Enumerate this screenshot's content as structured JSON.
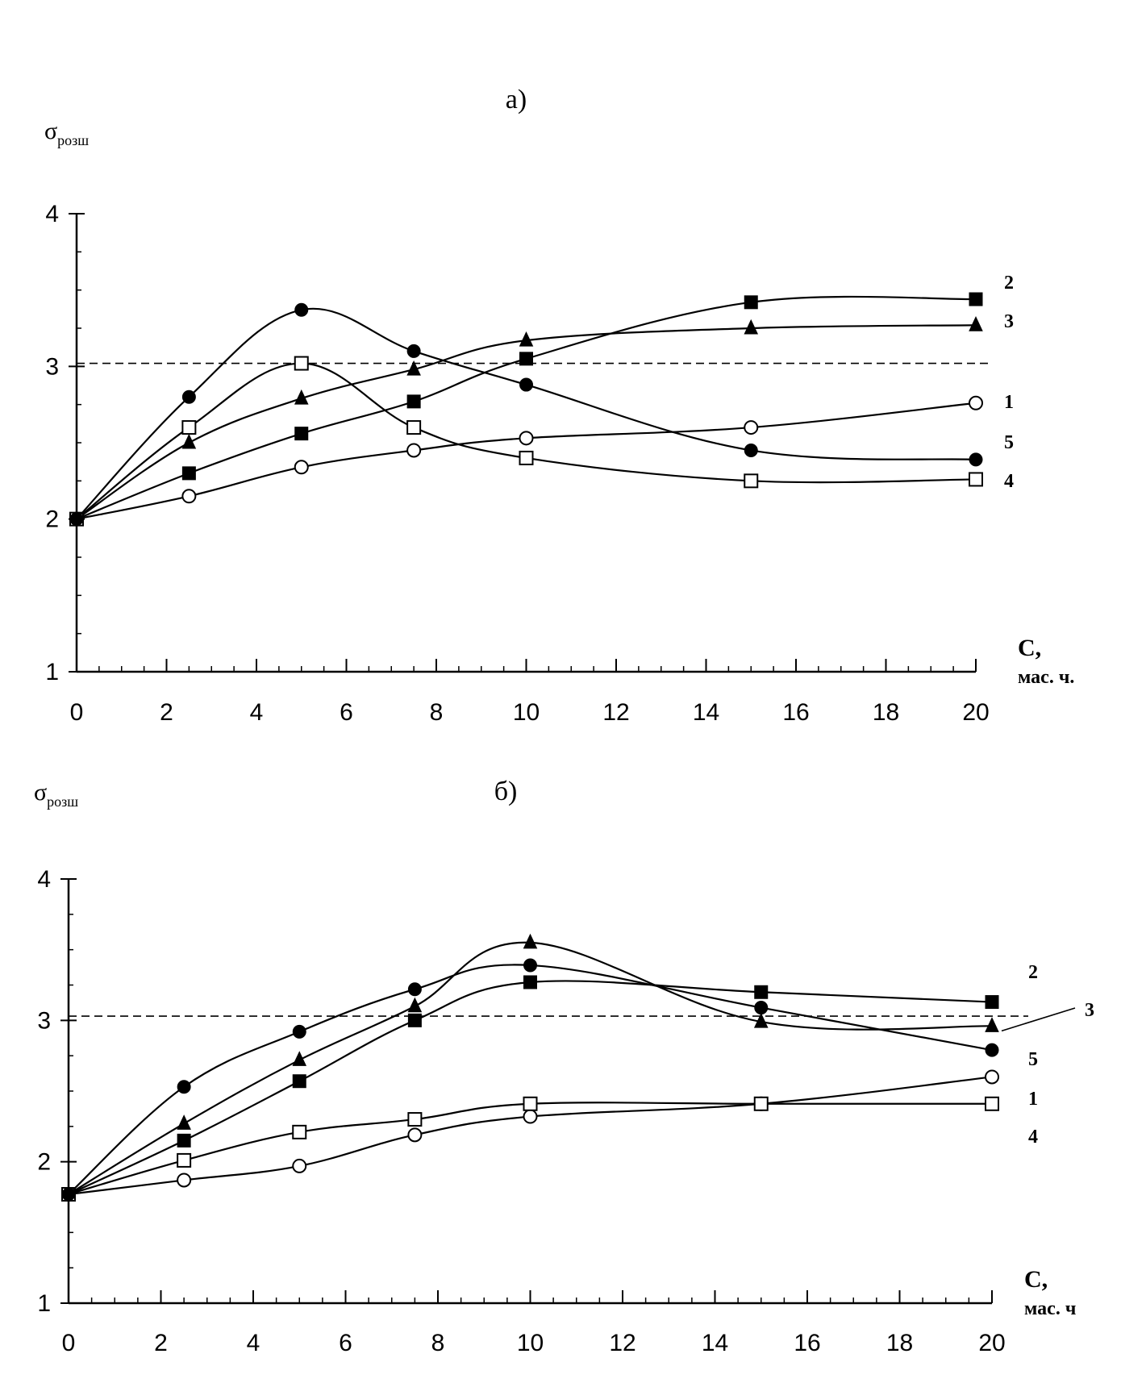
{
  "chart_data": [
    {
      "type": "line",
      "title": "а)",
      "ylabel_main": "σ",
      "ylabel_sub": "розш",
      "xlabel_line1": "С,",
      "xlabel_line2": "мас. ч.",
      "xlim": [
        0,
        20
      ],
      "ylim": [
        1,
        4
      ],
      "xticks": [
        0,
        2,
        4,
        6,
        8,
        10,
        12,
        14,
        16,
        18,
        20
      ],
      "yticks": [
        1,
        2,
        3,
        4
      ],
      "reference_line_y": 3.02,
      "series": [
        {
          "label": "1",
          "marker": "circle-open",
          "x": [
            0,
            2.5,
            5,
            7.5,
            10,
            15,
            20
          ],
          "y": [
            2.0,
            2.15,
            2.34,
            2.45,
            2.53,
            2.6,
            2.76
          ]
        },
        {
          "label": "2",
          "marker": "square-filled",
          "x": [
            0,
            2.5,
            5,
            7.5,
            10,
            15,
            20
          ],
          "y": [
            2.0,
            2.3,
            2.56,
            2.77,
            3.05,
            3.42,
            3.44
          ]
        },
        {
          "label": "3",
          "marker": "triangle-filled",
          "x": [
            0,
            2.5,
            5,
            7.5,
            10,
            15,
            20
          ],
          "y": [
            2.0,
            2.5,
            2.79,
            2.98,
            3.17,
            3.25,
            3.27
          ]
        },
        {
          "label": "4",
          "marker": "square-open",
          "x": [
            0,
            2.5,
            5,
            7.5,
            10,
            15,
            20
          ],
          "y": [
            2.0,
            2.6,
            3.02,
            2.6,
            2.4,
            2.25,
            2.26
          ]
        },
        {
          "label": "5",
          "marker": "circle-filled",
          "x": [
            0,
            2.5,
            5,
            7.5,
            10,
            15,
            20
          ],
          "y": [
            2.0,
            2.8,
            3.37,
            3.1,
            2.88,
            2.45,
            2.39
          ]
        }
      ]
    },
    {
      "type": "line",
      "title": "б)",
      "ylabel_main": "σ",
      "ylabel_sub": "розш",
      "xlabel_line1": "С,",
      "xlabel_line2": "мас. ч",
      "xlim": [
        0,
        20
      ],
      "ylim": [
        1,
        4
      ],
      "xticks": [
        0,
        2,
        4,
        6,
        8,
        10,
        12,
        14,
        16,
        18,
        20
      ],
      "yticks": [
        1,
        2,
        3,
        4
      ],
      "reference_line_y": 3.03,
      "series": [
        {
          "label": "1",
          "marker": "circle-open",
          "x": [
            0,
            2.5,
            5,
            7.5,
            10,
            15,
            20
          ],
          "y": [
            1.77,
            1.87,
            1.97,
            2.19,
            2.32,
            2.41,
            2.6
          ]
        },
        {
          "label": "2",
          "marker": "square-filled",
          "x": [
            0,
            2.5,
            5,
            7.5,
            10,
            15,
            20
          ],
          "y": [
            1.77,
            2.15,
            2.57,
            3.0,
            3.27,
            3.2,
            3.13
          ]
        },
        {
          "label": "3",
          "marker": "triangle-filled",
          "x": [
            0,
            2.5,
            5,
            7.5,
            10,
            15,
            20
          ],
          "y": [
            1.77,
            2.27,
            2.72,
            3.1,
            3.55,
            2.99,
            2.96
          ]
        },
        {
          "label": "4",
          "marker": "square-open",
          "x": [
            0,
            2.5,
            5,
            7.5,
            10,
            15,
            20
          ],
          "y": [
            1.77,
            2.01,
            2.21,
            2.3,
            2.41,
            2.41,
            2.41
          ]
        },
        {
          "label": "5",
          "marker": "circle-filled",
          "x": [
            0,
            2.5,
            5,
            7.5,
            10,
            15,
            20
          ],
          "y": [
            1.77,
            2.53,
            2.92,
            3.22,
            3.39,
            3.09,
            2.79
          ]
        }
      ]
    }
  ]
}
